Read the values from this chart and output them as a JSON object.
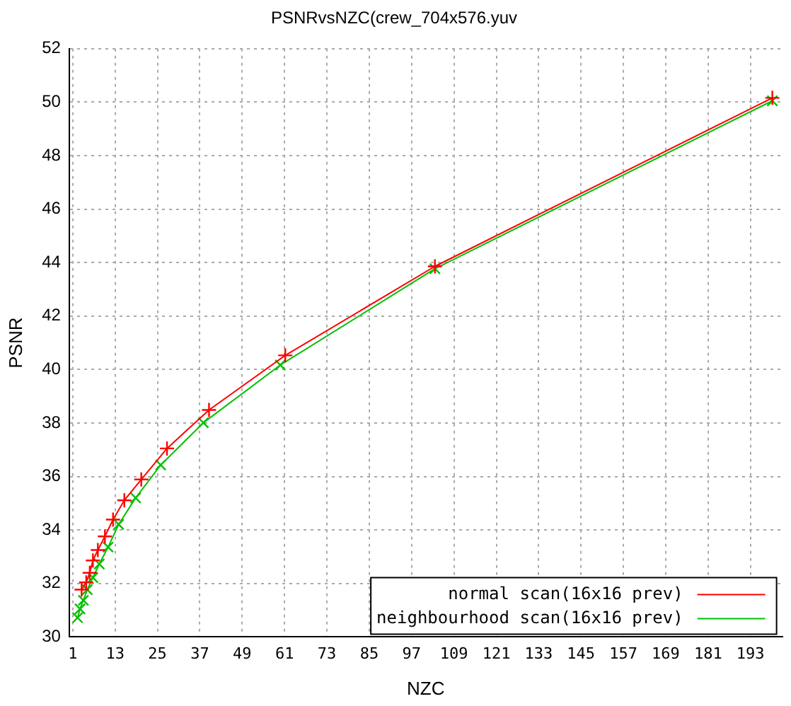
{
  "chart_data": {
    "type": "line",
    "title": "PSNRvsNZC(crew_704x576.yuv",
    "xlabel": "NZC",
    "ylabel": "PSNR",
    "xlim": [
      0,
      202
    ],
    "xticks": [
      1,
      13,
      25,
      37,
      49,
      61,
      73,
      85,
      97,
      109,
      121,
      133,
      145,
      157,
      169,
      181,
      193
    ],
    "ylim": [
      30,
      52
    ],
    "yticks": [
      30,
      32,
      34,
      36,
      38,
      40,
      42,
      44,
      46,
      48,
      50,
      52
    ],
    "grid": true,
    "legend": "bottom right",
    "line_style": "solid",
    "series": [
      {
        "name": "normal scan(16x16 prev)",
        "color": "#ff0000",
        "marker": "cross",
        "x": [
          3.5,
          4.8,
          5.8,
          6.7,
          8.1,
          10.1,
          12.4,
          15.6,
          20.4,
          27.7,
          39.6,
          61.2,
          103.6,
          199.2
        ],
        "values": [
          31.77,
          32.04,
          32.4,
          32.86,
          33.25,
          33.76,
          34.39,
          35.11,
          35.89,
          37.05,
          38.49,
          40.53,
          43.86,
          50.16
        ]
      },
      {
        "name": "neighbourhood scan(16x16 prev)",
        "color": "#00c000",
        "marker": "cross",
        "x": [
          2.35,
          3.05,
          4.0,
          5.1,
          6.7,
          8.5,
          11.0,
          14.0,
          18.8,
          25.9,
          38.0,
          59.8,
          103.6,
          199.2
        ],
        "values": [
          30.72,
          31.05,
          31.37,
          31.77,
          32.22,
          32.73,
          33.36,
          34.21,
          35.2,
          36.43,
          38.01,
          40.17,
          43.77,
          50.05
        ]
      }
    ]
  }
}
